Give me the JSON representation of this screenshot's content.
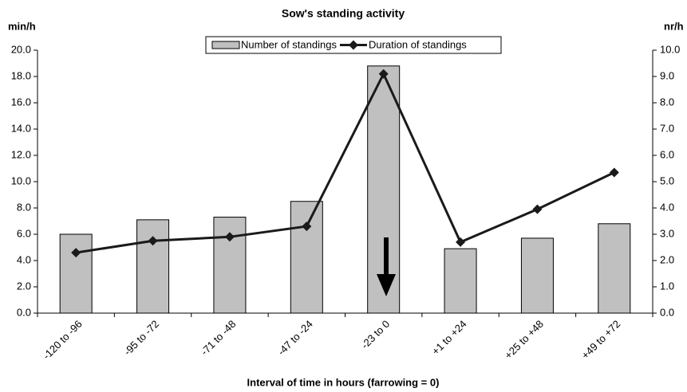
{
  "chart_data": {
    "type": "bar_line",
    "title": "Sow's standing activity",
    "y_axis_label": "min/h",
    "y2_axis_label": "nr/h",
    "x_axis_label": "Interval of time in hours (farrowing = 0)",
    "categories": [
      "-120 to -96",
      "-95 to -72",
      "-71 to -48",
      "-47 to -24",
      "-23 to 0",
      "+1 to +24",
      "+25 to +48",
      "+49 to +72"
    ],
    "series": [
      {
        "name": "Number of standings",
        "type": "bar",
        "axis": "y2",
        "color": "#c0c0c0",
        "values": [
          3.0,
          3.55,
          3.65,
          4.25,
          9.4,
          2.45,
          2.85,
          3.4
        ]
      },
      {
        "name": "Duration of standings",
        "type": "line",
        "axis": "y",
        "color": "#1a1a1a",
        "values": [
          4.6,
          5.5,
          5.8,
          6.6,
          18.2,
          5.4,
          7.9,
          10.7
        ]
      }
    ],
    "ylim": [
      0,
      20
    ],
    "yticks": [
      {
        "value": 0,
        "label": "0.0"
      },
      {
        "value": 2,
        "label": "2.0"
      },
      {
        "value": 4,
        "label": "4.0"
      },
      {
        "value": 6,
        "label": "6.0"
      },
      {
        "value": 8,
        "label": "8.0"
      },
      {
        "value": 10,
        "label": "10.0"
      },
      {
        "value": 12,
        "label": "12.0"
      },
      {
        "value": 14,
        "label": "14.0"
      },
      {
        "value": 16,
        "label": "16.0"
      },
      {
        "value": 18,
        "label": "18.0"
      },
      {
        "value": 20,
        "label": "20.0"
      }
    ],
    "y2lim": [
      0,
      10
    ],
    "y2ticks": [
      {
        "value": 0,
        "label": "0.0"
      },
      {
        "value": 1,
        "label": "1.0"
      },
      {
        "value": 2,
        "label": "2.0"
      },
      {
        "value": 3,
        "label": "3.0"
      },
      {
        "value": 4,
        "label": "4.0"
      },
      {
        "value": 5,
        "label": "5.0"
      },
      {
        "value": 6,
        "label": "6.0"
      },
      {
        "value": 7,
        "label": "7.0"
      },
      {
        "value": 8,
        "label": "8.0"
      },
      {
        "value": 9,
        "label": "9.0"
      },
      {
        "value": 10,
        "label": "10.0"
      }
    ],
    "legend": "top"
  }
}
